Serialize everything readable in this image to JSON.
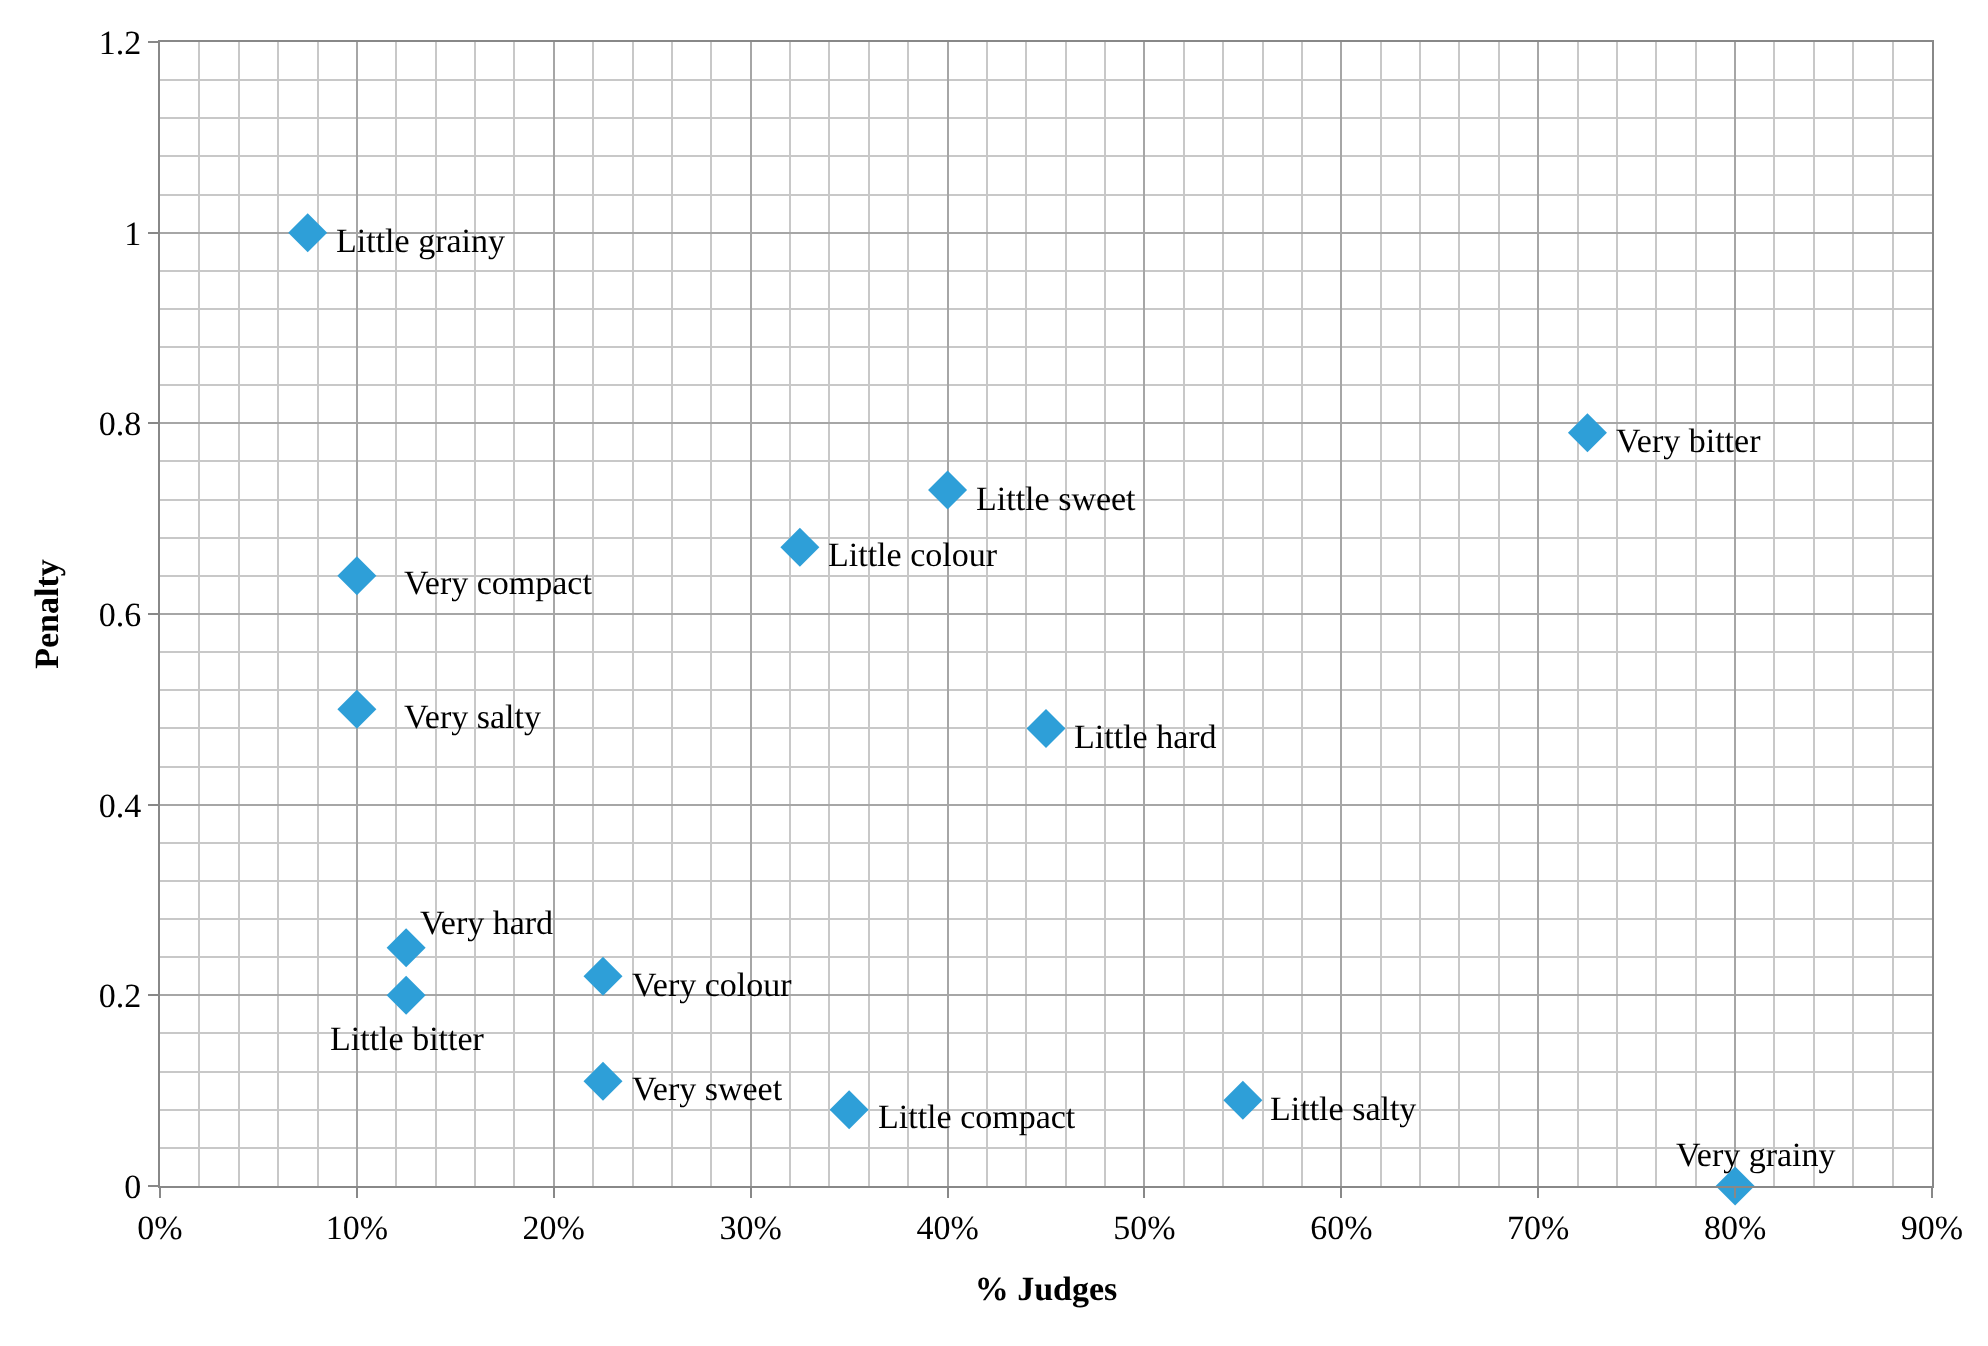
{
  "chart_data": {
    "type": "scatter",
    "xlabel": "% Judges",
    "ylabel": "Penalty",
    "x": [
      7.5,
      10,
      10,
      12.5,
      12.5,
      22.5,
      22.5,
      32.5,
      35,
      40,
      45,
      55,
      72.5,
      80
    ],
    "series": [
      {
        "color": "#2e9fd8",
        "values": [
          1.0,
          0.64,
          0.5,
          0.25,
          0.2,
          0.22,
          0.11,
          0.67,
          0.08,
          0.73,
          0.48,
          0.09,
          0.79,
          0.0
        ]
      }
    ],
    "annotations": [
      {
        "text": "Little grainy",
        "x": 7.5,
        "y": 1.0
      },
      {
        "text": "Very compact",
        "x": 10,
        "y": 0.64
      },
      {
        "text": "Very salty",
        "x": 10,
        "y": 0.5
      },
      {
        "text": "Very hard",
        "x": 12.5,
        "y": 0.25
      },
      {
        "text": "Little bitter",
        "x": 12.5,
        "y": 0.2
      },
      {
        "text": "Very colour",
        "x": 22.5,
        "y": 0.22
      },
      {
        "text": "Very sweet",
        "x": 22.5,
        "y": 0.11
      },
      {
        "text": "Little colour",
        "x": 32.5,
        "y": 0.67
      },
      {
        "text": "Little compact",
        "x": 35,
        "y": 0.08
      },
      {
        "text": "Little sweet",
        "x": 40,
        "y": 0.73
      },
      {
        "text": "Little hard",
        "x": 45,
        "y": 0.48
      },
      {
        "text": "Little salty",
        "x": 55,
        "y": 0.09
      },
      {
        "text": "Very bitter",
        "x": 72.5,
        "y": 0.79
      },
      {
        "text": "Very grainy",
        "x": 80,
        "y": 0.0
      }
    ],
    "xlim": [
      0,
      90
    ],
    "xticks": [
      {
        "value": 0,
        "label": "0%"
      },
      {
        "value": 10,
        "label": "10%"
      },
      {
        "value": 20,
        "label": "20%"
      },
      {
        "value": 30,
        "label": "30%"
      },
      {
        "value": 40,
        "label": "40%"
      },
      {
        "value": 50,
        "label": "50%"
      },
      {
        "value": 60,
        "label": "60%"
      },
      {
        "value": 70,
        "label": "70%"
      },
      {
        "value": 80,
        "label": "80%"
      },
      {
        "value": 90,
        "label": "90%"
      }
    ],
    "ylim": [
      0,
      1.2
    ],
    "yticks": [
      0,
      0.2,
      0.4,
      0.6,
      0.8,
      1,
      1.2
    ],
    "grid": true,
    "marker": "diamond"
  }
}
